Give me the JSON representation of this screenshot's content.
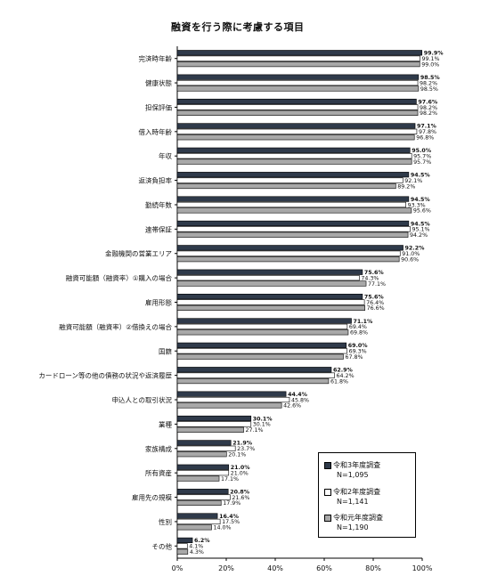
{
  "chart_data": {
    "type": "bar",
    "orientation": "horizontal",
    "title": "融資を行う際に考慮する項目",
    "categories": [
      "完済時年齢",
      "健康状態",
      "担保評価",
      "借入時年齢",
      "年収",
      "返済負担率",
      "勤続年数",
      "連帯保証",
      "金融機関の営業エリア",
      "融資可能額（融資率）①購入の場合",
      "雇用形態",
      "融資可能額（融資率）②借換えの場合",
      "国籍",
      "カードローン等の他の債務の状況や返済履歴",
      "申込人との取引状況",
      "業種",
      "家族構成",
      "所有資産",
      "雇用先の規模",
      "性別",
      "その他"
    ],
    "series": [
      {
        "name": "令和3年度調査",
        "n_label": "N=1,095",
        "color": "#2f3a4a",
        "values": [
          99.9,
          98.5,
          97.6,
          97.1,
          95.0,
          94.5,
          94.5,
          94.5,
          92.2,
          75.6,
          75.6,
          71.1,
          69.0,
          62.9,
          44.4,
          30.1,
          21.9,
          21.0,
          20.8,
          16.4,
          6.2
        ]
      },
      {
        "name": "令和2年度調査",
        "n_label": "N=1,141",
        "color": "#ffffff",
        "values": [
          99.1,
          98.2,
          98.2,
          97.8,
          95.7,
          92.1,
          93.3,
          95.1,
          91.0,
          74.3,
          76.4,
          69.4,
          69.3,
          64.2,
          45.8,
          30.1,
          23.7,
          21.0,
          21.6,
          17.5,
          4.1
        ]
      },
      {
        "name": "令和元年度調査",
        "n_label": "N=1,190",
        "color": "#a8a8a8",
        "values": [
          99.0,
          98.5,
          98.2,
          96.8,
          95.7,
          89.2,
          95.6,
          94.2,
          90.6,
          77.1,
          76.6,
          69.8,
          67.8,
          61.8,
          42.6,
          27.1,
          20.1,
          17.1,
          17.9,
          14.0,
          4.3
        ]
      }
    ],
    "xlabel": "",
    "ylabel": "",
    "xlim": [
      0,
      100
    ],
    "xticks": [
      "0%",
      "20%",
      "40%",
      "60%",
      "80%",
      "100%"
    ],
    "grid": false,
    "legend_position": "bottom-right"
  }
}
